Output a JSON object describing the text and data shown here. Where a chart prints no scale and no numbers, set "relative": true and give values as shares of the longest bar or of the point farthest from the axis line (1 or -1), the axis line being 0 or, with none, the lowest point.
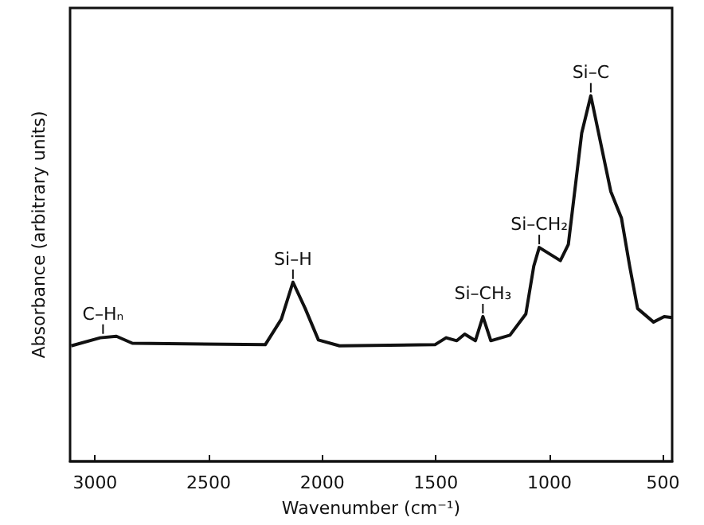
{
  "chart_data": {
    "type": "line",
    "xlabel": "Wavenumber (cm⁻¹)",
    "ylabel": "Absorbance (arbitrary units)",
    "relative": true,
    "xlim": [
      3110,
      460
    ],
    "xticks": [
      3000,
      2500,
      2000,
      1500,
      1000,
      500
    ],
    "x": [
      3105,
      2977,
      2906,
      2836,
      2251,
      2180,
      2129,
      2075,
      2017,
      1924,
      1504,
      1455,
      1408,
      1373,
      1326,
      1293,
      1258,
      1174,
      1104,
      1069,
      1045,
      952,
      917,
      858,
      818,
      730,
      683,
      647,
      612,
      542,
      495,
      460
    ],
    "series": [
      {
        "color": "#111111",
        "values": [
          0.316,
          0.338,
          0.342,
          0.323,
          0.319,
          0.389,
          0.49,
          0.418,
          0.332,
          0.316,
          0.319,
          0.338,
          0.33,
          0.348,
          0.33,
          0.396,
          0.33,
          0.345,
          0.403,
          0.534,
          0.585,
          0.549,
          0.593,
          0.898,
          1.0,
          0.738,
          0.665,
          0.534,
          0.418,
          0.381,
          0.396,
          0.393
        ]
      }
    ],
    "annotations": [
      {
        "text": "C–Hₙ",
        "x": 2965,
        "y": 0.34
      },
      {
        "text": "Si–H",
        "x": 2129,
        "y": 0.49
      },
      {
        "text": "Si–CH₃",
        "x": 1293,
        "y": 0.396
      },
      {
        "text": "Si–CH₂",
        "x": 1045,
        "y": 0.585
      },
      {
        "text": "Si–C",
        "x": 818,
        "y": 1.0
      }
    ]
  }
}
